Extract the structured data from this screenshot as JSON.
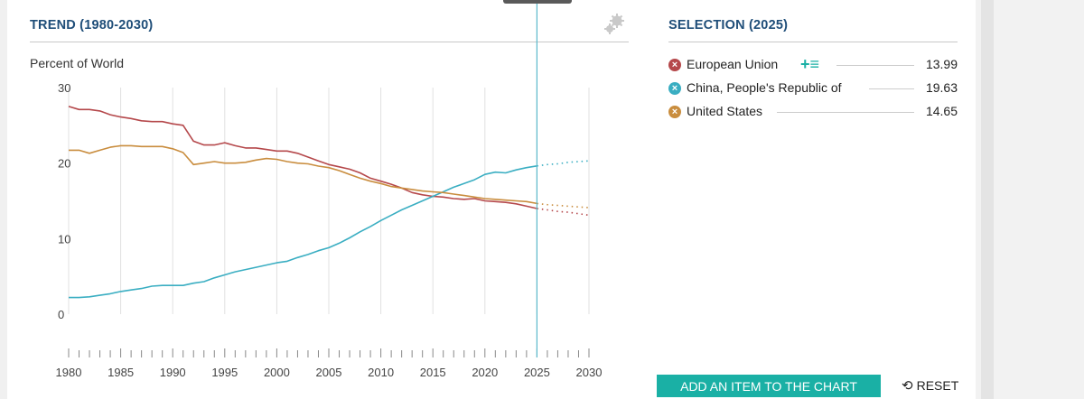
{
  "trend_header": "TREND (1980-2030)",
  "selection_header": "SELECTION (2025)",
  "y_axis_label": "Percent of World",
  "colors": {
    "eu": "#b5484b",
    "china": "#3aaec2",
    "us": "#c98d3e",
    "accent": "#1ab0a5",
    "header": "#1f4e79"
  },
  "legend": [
    {
      "name": "European Union",
      "value": "13.99",
      "color": "#b5484b",
      "marker": "×"
    },
    {
      "name": "China, People's Republic of",
      "value": "19.63",
      "color": "#3aaec2",
      "marker": "×"
    },
    {
      "name": "United States",
      "value": "14.65",
      "color": "#c98d3e",
      "marker": "×"
    }
  ],
  "legend_actions": "+≡",
  "add_button": "ADD AN ITEM TO THE CHART",
  "reset_label": "RESET",
  "reset_icon": "⟲",
  "chart_data": {
    "type": "line",
    "title": "TREND (1980-2030)",
    "ylabel": "Percent of World",
    "xlabel": "",
    "xlim": [
      1980,
      2030
    ],
    "ylim": [
      0,
      30
    ],
    "x_ticks": [
      1980,
      1985,
      1990,
      1995,
      2000,
      2005,
      2010,
      2015,
      2020,
      2025,
      2030
    ],
    "y_ticks": [
      0,
      10,
      20,
      30
    ],
    "selected_year": 2025,
    "projection_start": 2025,
    "series": [
      {
        "name": "European Union",
        "key": "eu",
        "x": [
          1980,
          1981,
          1982,
          1983,
          1984,
          1985,
          1986,
          1987,
          1988,
          1989,
          1990,
          1991,
          1992,
          1993,
          1994,
          1995,
          1996,
          1997,
          1998,
          1999,
          2000,
          2001,
          2002,
          2003,
          2004,
          2005,
          2006,
          2007,
          2008,
          2009,
          2010,
          2011,
          2012,
          2013,
          2014,
          2015,
          2016,
          2017,
          2018,
          2019,
          2020,
          2021,
          2022,
          2023,
          2024,
          2025,
          2026,
          2027,
          2028,
          2029,
          2030
        ],
        "values": [
          27.5,
          27.1,
          27.1,
          26.9,
          26.4,
          26.1,
          25.9,
          25.6,
          25.5,
          25.5,
          25.2,
          25.0,
          22.9,
          22.4,
          22.4,
          22.7,
          22.3,
          22.0,
          22.0,
          21.8,
          21.6,
          21.6,
          21.3,
          20.8,
          20.3,
          19.8,
          19.5,
          19.2,
          18.7,
          18.0,
          17.6,
          17.2,
          16.7,
          16.1,
          15.8,
          15.6,
          15.5,
          15.3,
          15.2,
          15.3,
          15.0,
          14.9,
          14.8,
          14.6,
          14.3,
          13.99,
          13.8,
          13.6,
          13.5,
          13.3,
          13.1
        ]
      },
      {
        "name": "China, People's Republic of",
        "key": "china",
        "x": [
          1980,
          1981,
          1982,
          1983,
          1984,
          1985,
          1986,
          1987,
          1988,
          1989,
          1990,
          1991,
          1992,
          1993,
          1994,
          1995,
          1996,
          1997,
          1998,
          1999,
          2000,
          2001,
          2002,
          2003,
          2004,
          2005,
          2006,
          2007,
          2008,
          2009,
          2010,
          2011,
          2012,
          2013,
          2014,
          2015,
          2016,
          2017,
          2018,
          2019,
          2020,
          2021,
          2022,
          2023,
          2024,
          2025,
          2026,
          2027,
          2028,
          2029,
          2030
        ],
        "values": [
          2.2,
          2.2,
          2.3,
          2.5,
          2.7,
          3.0,
          3.2,
          3.4,
          3.7,
          3.8,
          3.8,
          3.8,
          4.1,
          4.3,
          4.8,
          5.2,
          5.6,
          5.9,
          6.2,
          6.5,
          6.8,
          7.0,
          7.5,
          7.9,
          8.4,
          8.8,
          9.4,
          10.1,
          10.9,
          11.6,
          12.4,
          13.1,
          13.8,
          14.4,
          15.0,
          15.6,
          16.2,
          16.8,
          17.3,
          17.8,
          18.5,
          18.8,
          18.7,
          19.1,
          19.4,
          19.63,
          19.8,
          19.9,
          20.1,
          20.2,
          20.3
        ]
      },
      {
        "name": "United States",
        "key": "us",
        "x": [
          1980,
          1981,
          1982,
          1983,
          1984,
          1985,
          1986,
          1987,
          1988,
          1989,
          1990,
          1991,
          1992,
          1993,
          1994,
          1995,
          1996,
          1997,
          1998,
          1999,
          2000,
          2001,
          2002,
          2003,
          2004,
          2005,
          2006,
          2007,
          2008,
          2009,
          2010,
          2011,
          2012,
          2013,
          2014,
          2015,
          2016,
          2017,
          2018,
          2019,
          2020,
          2021,
          2022,
          2023,
          2024,
          2025,
          2026,
          2027,
          2028,
          2029,
          2030
        ],
        "values": [
          21.7,
          21.7,
          21.3,
          21.7,
          22.1,
          22.3,
          22.3,
          22.2,
          22.2,
          22.2,
          21.9,
          21.4,
          19.8,
          20.0,
          20.2,
          20.0,
          20.0,
          20.1,
          20.4,
          20.6,
          20.5,
          20.2,
          20.0,
          19.9,
          19.6,
          19.4,
          19.0,
          18.5,
          18.0,
          17.6,
          17.3,
          16.9,
          16.7,
          16.5,
          16.3,
          16.2,
          16.1,
          15.9,
          15.7,
          15.5,
          15.3,
          15.2,
          15.1,
          15.0,
          14.9,
          14.65,
          14.5,
          14.4,
          14.3,
          14.2,
          14.1
        ]
      }
    ]
  }
}
